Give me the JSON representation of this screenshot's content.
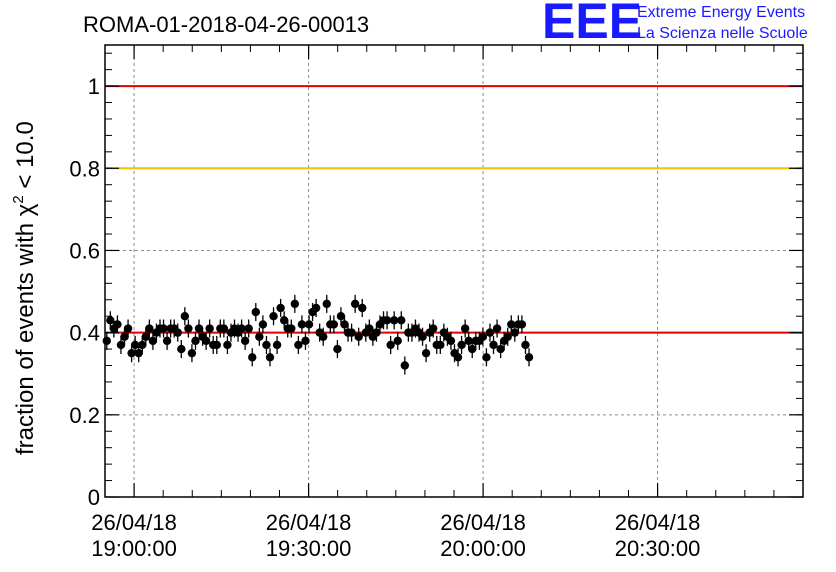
{
  "header": {
    "run_title": "ROMA-01-2018-04-26-00013",
    "logo_mark": "EEE",
    "org_line1": "Extreme Energy Events",
    "org_line2": "La Scienza nelle Scuole"
  },
  "chart_data": {
    "type": "scatter",
    "title": "ROMA-01-2018-04-26-00013",
    "xlabel": "",
    "ylabel": "fraction of events with χ",
    "ylabel_sup": "2",
    "ylabel_tail": " < 10.0",
    "x_unit": "minutes after 19:00:00",
    "xlim": [
      -5,
      115
    ],
    "ylim": [
      0,
      1.1
    ],
    "grid": true,
    "x_ticks": [
      {
        "x": 0,
        "date": "26/04/18",
        "time": "19:00:00"
      },
      {
        "x": 30,
        "date": "26/04/18",
        "time": "19:30:00"
      },
      {
        "x": 60,
        "date": "26/04/18",
        "time": "20:00:00"
      },
      {
        "x": 90,
        "date": "26/04/18",
        "time": "20:30:00"
      }
    ],
    "y_ticks": [
      {
        "value": 0,
        "label": "0"
      },
      {
        "value": 0.2,
        "label": "0.2"
      },
      {
        "value": 0.4,
        "label": "0.4"
      },
      {
        "value": 0.6,
        "label": "0.6"
      },
      {
        "value": 0.8,
        "label": "0.8"
      },
      {
        "value": 1,
        "label": "1"
      }
    ],
    "reference_lines": [
      {
        "y": 1.0,
        "color": "#e00000"
      },
      {
        "y": 0.8,
        "color": "#f2c200"
      },
      {
        "y": 0.4,
        "color": "#e00000"
      }
    ],
    "series": [
      {
        "marker_color": "#000000",
        "error": 0.022,
        "x0": -5,
        "dx": 0.61,
        "values": [
          0.38,
          0.43,
          0.41,
          0.42,
          0.37,
          0.39,
          0.41,
          0.35,
          0.37,
          0.35,
          0.37,
          0.39,
          0.41,
          0.38,
          0.4,
          0.41,
          0.41,
          0.38,
          0.41,
          0.41,
          0.4,
          0.36,
          0.44,
          0.41,
          0.35,
          0.38,
          0.41,
          0.39,
          0.38,
          0.41,
          0.37,
          0.37,
          0.41,
          0.41,
          0.37,
          0.4,
          0.41,
          0.4,
          0.41,
          0.38,
          0.41,
          0.34,
          0.45,
          0.39,
          0.42,
          0.37,
          0.34,
          0.44,
          0.37,
          0.46,
          0.43,
          0.41,
          0.41,
          0.47,
          0.37,
          0.42,
          0.38,
          0.42,
          0.45,
          0.46,
          0.4,
          0.39,
          0.47,
          0.42,
          0.42,
          0.36,
          0.44,
          0.42,
          0.4,
          0.4,
          0.47,
          0.39,
          0.46,
          0.4,
          0.41,
          0.39,
          0.4,
          0.42,
          0.43,
          0.43,
          0.37,
          0.43,
          0.38,
          0.43,
          0.32,
          0.4,
          0.4,
          0.41,
          0.4,
          0.39,
          0.35,
          0.4,
          0.41,
          0.37,
          0.37,
          0.4,
          0.39,
          0.38,
          0.35,
          0.34,
          0.37,
          0.41,
          0.38,
          0.36,
          0.38,
          0.38,
          0.39,
          0.34,
          0.4,
          0.37,
          0.41,
          0.36,
          0.38,
          0.39,
          0.42,
          0.4,
          0.42,
          0.42,
          0.37,
          0.34
        ]
      }
    ]
  }
}
